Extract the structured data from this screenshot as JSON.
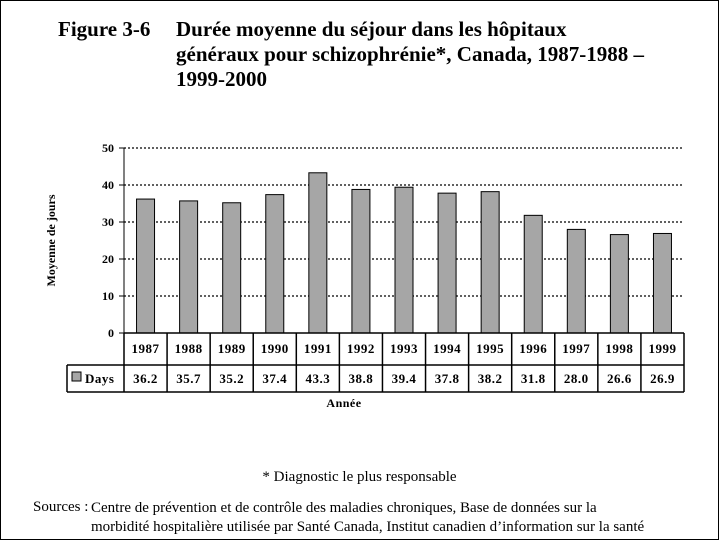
{
  "figure": {
    "number": "Figure 3-6",
    "title_lines": [
      "Durée moyenne du séjour dans les hôpitaux",
      "généraux pour schizophrénie*, Canada, 1987-1988 –",
      "1999-2000"
    ]
  },
  "chart_data": {
    "type": "bar",
    "categories": [
      "1987",
      "1988",
      "1989",
      "1990",
      "1991",
      "1992",
      "1993",
      "1994",
      "1995",
      "1996",
      "1997",
      "1998",
      "1999"
    ],
    "series": [
      {
        "name": "Days",
        "values": [
          36.2,
          35.7,
          35.2,
          37.4,
          43.3,
          38.8,
          39.4,
          37.8,
          38.2,
          31.8,
          28.0,
          26.6,
          26.9
        ]
      }
    ],
    "value_labels": [
      "36.2",
      "35.7",
      "35.2",
      "37.4",
      "43.3",
      "38.8",
      "39.4",
      "37.8",
      "38.2",
      "31.8",
      "28.0",
      "26.6",
      "26.9"
    ],
    "ylabel": "Moyenne de jours",
    "xlabel": "Année",
    "ylim": [
      0,
      50
    ],
    "yticks": [
      0,
      10,
      20,
      30,
      40,
      50
    ],
    "grid": true,
    "legend": "data-table",
    "colors": {
      "bar": "#a6a6a6",
      "border": "#000000",
      "background": "#ffffff"
    }
  },
  "footnote": "* Diagnostic le plus responsable",
  "sources": {
    "label": "Sources :",
    "lines": [
      "Centre de prévention et de contrôle des maladies chroniques, Base de données sur la",
      "morbidité hospitalière utilisée par Santé Canada, Institut canadien d’information sur la santé"
    ]
  }
}
